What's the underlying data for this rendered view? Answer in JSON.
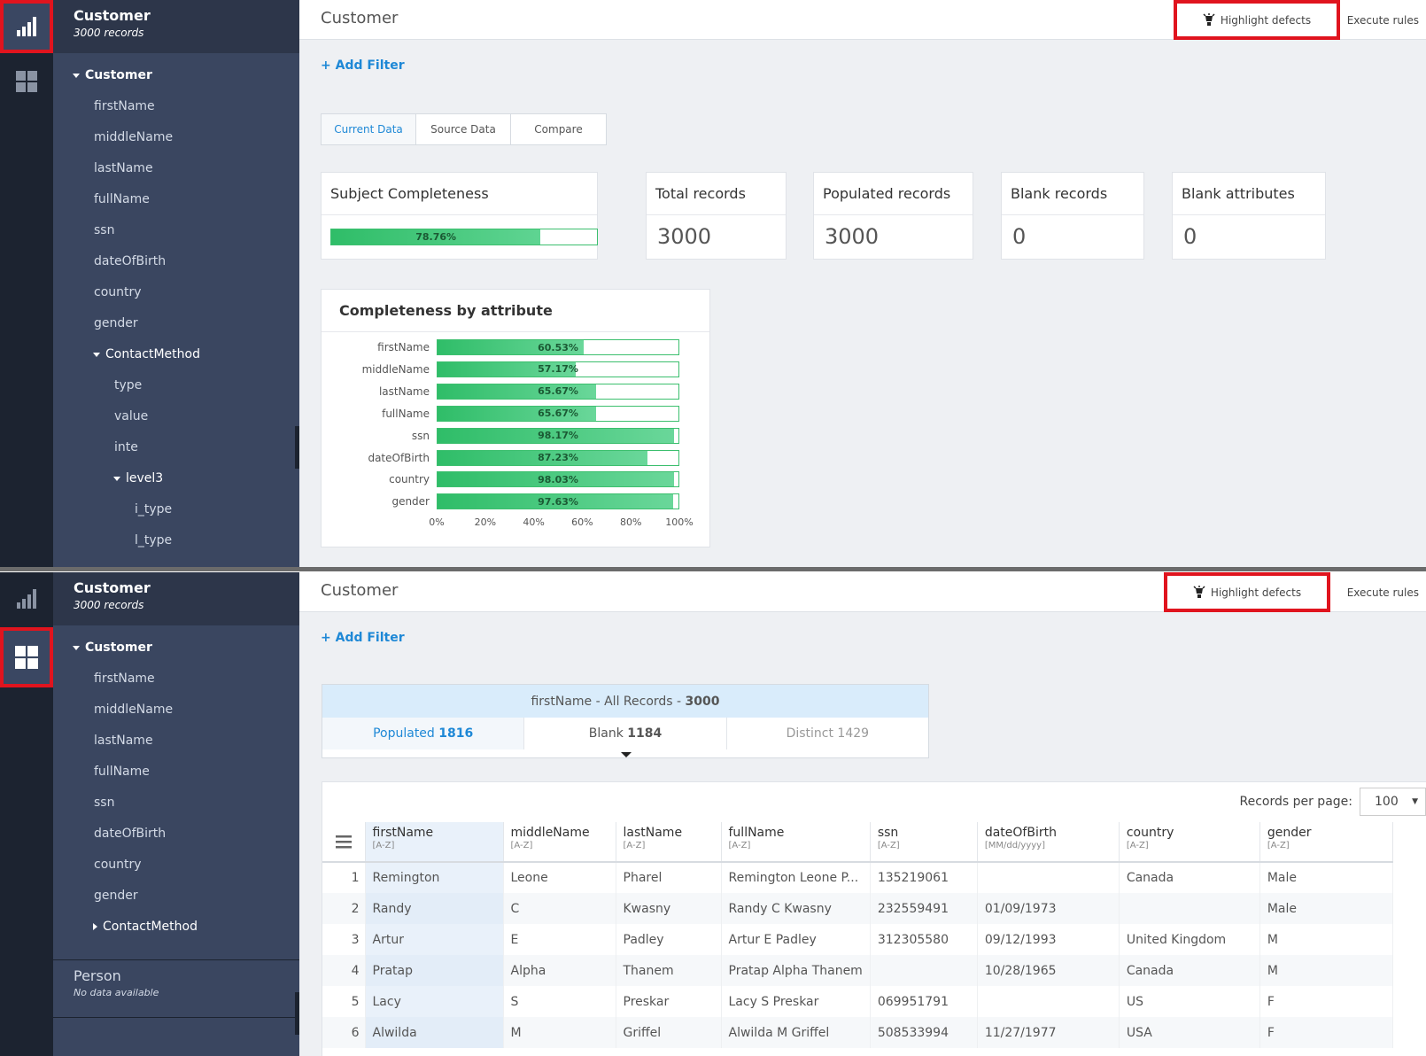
{
  "subject": {
    "title": "Customer",
    "records": "3000 records"
  },
  "tree1": [
    {
      "label": "Customer",
      "kind": "root"
    },
    {
      "label": "firstName"
    },
    {
      "label": "middleName"
    },
    {
      "label": "lastName"
    },
    {
      "label": "fullName"
    },
    {
      "label": "ssn"
    },
    {
      "label": "dateOfBirth"
    },
    {
      "label": "country"
    },
    {
      "label": "gender"
    },
    {
      "label": "ContactMethod",
      "kind": "open"
    },
    {
      "label": "type"
    },
    {
      "label": "value"
    },
    {
      "label": "inte"
    },
    {
      "label": "level3",
      "kind": "open"
    },
    {
      "label": "i_type"
    },
    {
      "label": "l_type"
    }
  ],
  "tree2": [
    {
      "label": "Customer",
      "kind": "root"
    },
    {
      "label": "firstName"
    },
    {
      "label": "middleName"
    },
    {
      "label": "lastName"
    },
    {
      "label": "fullName"
    },
    {
      "label": "ssn"
    },
    {
      "label": "dateOfBirth"
    },
    {
      "label": "country"
    },
    {
      "label": "gender"
    },
    {
      "label": "ContactMethod",
      "kind": "closed"
    }
  ],
  "person": {
    "title": "Person",
    "subtitle": "No data available"
  },
  "header": {
    "title": "Customer",
    "highlight": "Highlight defects",
    "execute": "Execute rules"
  },
  "filter": {
    "label": "+ Add Filter"
  },
  "tabs": [
    "Current Data",
    "Source Data",
    "Compare"
  ],
  "active_tab": "Current Data",
  "completeness": {
    "title": "Subject Completeness",
    "percent": 78.76,
    "label": "78.76%"
  },
  "metrics": [
    {
      "label": "Total records",
      "value": "3000"
    },
    {
      "label": "Populated records",
      "value": "3000"
    },
    {
      "label": "Blank records",
      "value": "0"
    },
    {
      "label": "Blank attributes",
      "value": "0"
    }
  ],
  "chart_data": {
    "type": "bar",
    "title": "Completeness by attribute",
    "categories": [
      "firstName",
      "middleName",
      "lastName",
      "fullName",
      "ssn",
      "dateOfBirth",
      "country",
      "gender"
    ],
    "values": [
      60.53,
      57.17,
      65.67,
      65.67,
      98.17,
      87.23,
      98.03,
      97.63
    ],
    "value_labels": [
      "60.53%",
      "57.17%",
      "65.67%",
      "65.67%",
      "98.17%",
      "87.23%",
      "98.03%",
      "97.63%"
    ],
    "xticks": [
      "0%",
      "20%",
      "40%",
      "60%",
      "80%",
      "100%"
    ],
    "xlim": [
      0,
      100
    ],
    "orientation": "horizontal",
    "color": "#3cbf6e"
  },
  "stats": {
    "title_prefix": "firstName - All Records - ",
    "title_count": "3000",
    "populated_label": "Populated ",
    "populated": "1816",
    "blank_label": "Blank ",
    "blank": "1184",
    "distinct_label": "Distinct ",
    "distinct": "1429"
  },
  "pager": {
    "label": "Records per page:",
    "value": "100"
  },
  "columns": [
    {
      "name": "firstName",
      "sort": "[A-Z]"
    },
    {
      "name": "middleName",
      "sort": "[A-Z]"
    },
    {
      "name": "lastName",
      "sort": "[A-Z]"
    },
    {
      "name": "fullName",
      "sort": "[A-Z]"
    },
    {
      "name": "ssn",
      "sort": "[A-Z]"
    },
    {
      "name": "dateOfBirth",
      "sort": "[MM/dd/yyyy]"
    },
    {
      "name": "country",
      "sort": "[A-Z]"
    },
    {
      "name": "gender",
      "sort": "[A-Z]"
    }
  ],
  "rows": [
    [
      "1",
      "Remington",
      "Leone",
      "Pharel",
      "Remington Leone P...",
      "135219061",
      "",
      "Canada",
      "Male"
    ],
    [
      "2",
      "Randy",
      "C",
      "Kwasny",
      "Randy C Kwasny",
      "232559491",
      "01/09/1973",
      "",
      "Male"
    ],
    [
      "3",
      "Artur",
      "E",
      "Padley",
      "Artur E Padley",
      "312305580",
      "09/12/1993",
      "United Kingdom",
      "M"
    ],
    [
      "4",
      "Pratap",
      "Alpha",
      "Thanem",
      "Pratap Alpha Thanem",
      "",
      "10/28/1965",
      "Canada",
      "M"
    ],
    [
      "5",
      "Lacy",
      "S",
      "Preskar",
      "Lacy S Preskar",
      "069951791",
      "",
      "US",
      "F"
    ],
    [
      "6",
      "Alwilda",
      "M",
      "Griffel",
      "Alwilda M Griffel",
      "508533994",
      "11/27/1977",
      "USA",
      "F"
    ]
  ]
}
